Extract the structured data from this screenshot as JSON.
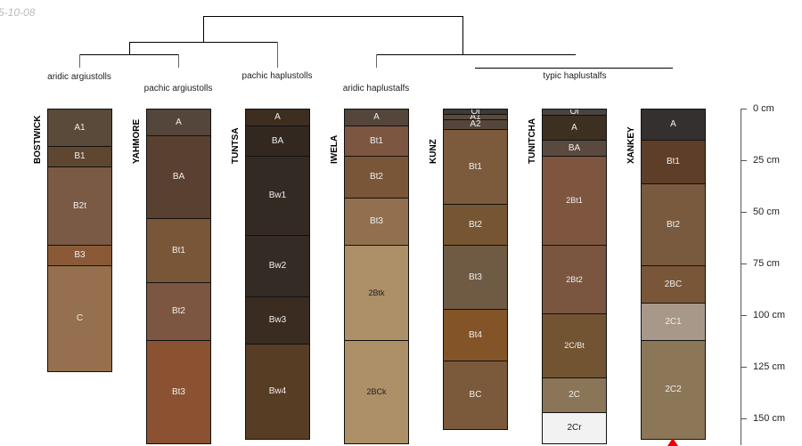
{
  "date": "5-10-08",
  "taxa": [
    {
      "label": "aridic argiustolls"
    },
    {
      "label": "pachic argiustolls"
    },
    {
      "label": "pachic haplustolls"
    },
    {
      "label": "aridic haplustalfs"
    },
    {
      "label": "typic haplustalfs"
    }
  ],
  "axis": {
    "unit": "cm",
    "ticks": [
      0,
      25,
      50,
      75,
      100,
      125,
      150
    ],
    "labels": [
      "0 cm",
      "25 cm",
      "50 cm",
      "75 cm",
      "100 cm",
      "125 cm",
      "150 cm"
    ]
  },
  "profiles": [
    {
      "name": "BOSTWICK",
      "horizons": [
        {
          "name": "A1",
          "top": 0,
          "bottom": 18,
          "color": "#5a4a3a"
        },
        {
          "name": "B1",
          "top": 18,
          "bottom": 28,
          "color": "#5e4630"
        },
        {
          "name": "B2t",
          "top": 28,
          "bottom": 66,
          "color": "#7a5a44"
        },
        {
          "name": "B3",
          "top": 66,
          "bottom": 76,
          "color": "#8a5a38"
        },
        {
          "name": "C",
          "top": 76,
          "bottom": 127,
          "color": "#96704e"
        }
      ]
    },
    {
      "name": "YAHMORE",
      "horizons": [
        {
          "name": "A",
          "top": 0,
          "bottom": 13,
          "color": "#54463a"
        },
        {
          "name": "BA",
          "top": 13,
          "bottom": 53,
          "color": "#5a4030"
        },
        {
          "name": "Bt1",
          "top": 53,
          "bottom": 84,
          "color": "#7a5638"
        },
        {
          "name": "Bt2",
          "top": 84,
          "bottom": 112,
          "color": "#7c5640"
        },
        {
          "name": "Bt3",
          "top": 112,
          "bottom": 162,
          "color": "#8a5230"
        }
      ]
    },
    {
      "name": "TUNTSA",
      "horizons": [
        {
          "name": "A",
          "top": 0,
          "bottom": 8,
          "color": "#3e2e20"
        },
        {
          "name": "BA",
          "top": 8,
          "bottom": 23,
          "color": "#33281f"
        },
        {
          "name": "Bw1",
          "top": 23,
          "bottom": 61,
          "color": "#342a24"
        },
        {
          "name": "Bw2",
          "top": 61,
          "bottom": 91,
          "color": "#352b25"
        },
        {
          "name": "Bw3",
          "top": 91,
          "bottom": 114,
          "color": "#3a2c20"
        },
        {
          "name": "Bw4",
          "top": 114,
          "bottom": 160,
          "color": "#573d24"
        }
      ]
    },
    {
      "name": "IWELA",
      "horizons": [
        {
          "name": "A",
          "top": 0,
          "bottom": 8,
          "color": "#54463a"
        },
        {
          "name": "Bt1",
          "top": 8,
          "bottom": 23,
          "color": "#7c5640"
        },
        {
          "name": "Bt2",
          "top": 23,
          "bottom": 43,
          "color": "#7a5638"
        },
        {
          "name": "Bt3",
          "top": 43,
          "bottom": 66,
          "color": "#92704f"
        },
        {
          "name": "2Btk",
          "top": 66,
          "bottom": 112,
          "color": "#ad8f68",
          "dark": true
        },
        {
          "name": "2BCk",
          "top": 112,
          "bottom": 162,
          "color": "#ad8f68",
          "dark": true
        }
      ]
    },
    {
      "name": "KUNZ",
      "horizons": [
        {
          "name": "Oi",
          "top": 0,
          "bottom": 2.5,
          "color": "#3e3a36"
        },
        {
          "name": "A1",
          "top": 2.5,
          "bottom": 5,
          "color": "#5a4a3a"
        },
        {
          "name": "A2",
          "top": 5,
          "bottom": 10,
          "color": "#54463a"
        },
        {
          "name": "Bt1",
          "top": 10,
          "bottom": 46,
          "color": "#7c5a3c"
        },
        {
          "name": "Bt2",
          "top": 46,
          "bottom": 66,
          "color": "#765632"
        },
        {
          "name": "Bt3",
          "top": 66,
          "bottom": 97,
          "color": "#6f5a44"
        },
        {
          "name": "Bt4",
          "top": 97,
          "bottom": 122,
          "color": "#835428"
        },
        {
          "name": "BC",
          "top": 122,
          "bottom": 155,
          "color": "#7a5a3a"
        }
      ]
    },
    {
      "name": "TUNITCHA",
      "horizons": [
        {
          "name": "Oi",
          "top": 0,
          "bottom": 3,
          "color": "#4a4440"
        },
        {
          "name": "A",
          "top": 3,
          "bottom": 15,
          "color": "#3e3020"
        },
        {
          "name": "BA",
          "top": 15,
          "bottom": 23,
          "color": "#5a4a3e"
        },
        {
          "name": "2Bt1",
          "top": 23,
          "bottom": 66,
          "color": "#7e5640"
        },
        {
          "name": "2Bt2",
          "top": 66,
          "bottom": 99,
          "color": "#7a5640"
        },
        {
          "name": "2C/Bt",
          "top": 99,
          "bottom": 130,
          "color": "#735432"
        },
        {
          "name": "2C",
          "top": 130,
          "bottom": 147,
          "color": "#8a7558"
        },
        {
          "name": "2Cr",
          "top": 147,
          "bottom": 162,
          "color": "#f2f2f2",
          "dark": true
        }
      ]
    },
    {
      "name": "XANKEY",
      "horizons": [
        {
          "name": "A",
          "top": 0,
          "bottom": 15,
          "color": "#353030"
        },
        {
          "name": "Bt1",
          "top": 15,
          "bottom": 36,
          "color": "#5e3e28"
        },
        {
          "name": "Bt2",
          "top": 36,
          "bottom": 76,
          "color": "#7a5a3e"
        },
        {
          "name": "2BC",
          "top": 76,
          "bottom": 94,
          "color": "#7a5638"
        },
        {
          "name": "2C1",
          "top": 94,
          "bottom": 112,
          "color": "#a8988a"
        },
        {
          "name": "2C2",
          "top": 112,
          "bottom": 160,
          "color": "#8c7658"
        }
      ]
    }
  ]
}
